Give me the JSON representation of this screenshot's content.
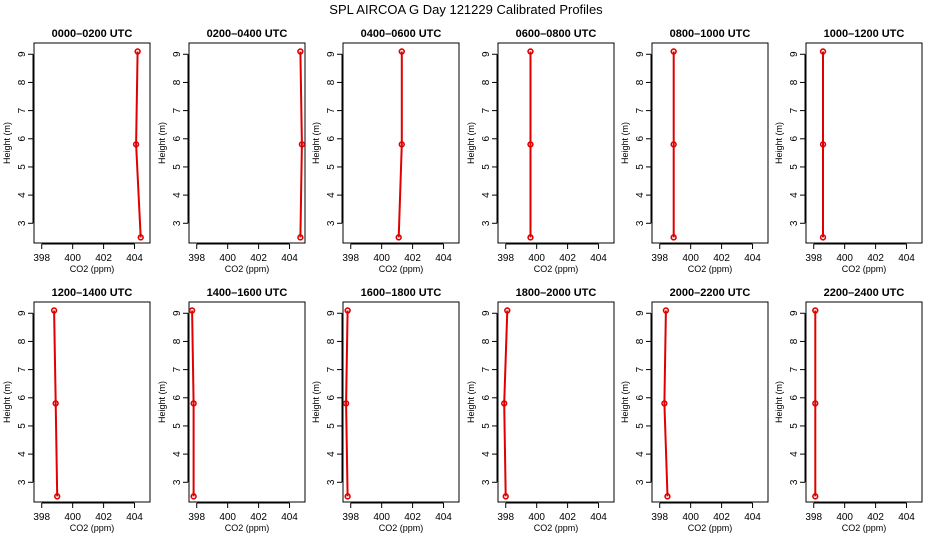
{
  "title": "SPL AIRCOA G  Day 121229  Calibrated Profiles",
  "colors": {
    "series": "#e00000",
    "axes": "#000000",
    "background": "#ffffff"
  },
  "chart_data": [
    {
      "type": "line",
      "title": "0000–0200 UTC",
      "xlabel": "CO2 (ppm)",
      "ylabel": "Height (m)",
      "xlim": [
        397.5,
        405
      ],
      "ylim": [
        2.3,
        9.4
      ],
      "xticks": [
        398,
        400,
        402,
        404
      ],
      "yticks": [
        3,
        4,
        5,
        6,
        7,
        8,
        9
      ],
      "grid": false,
      "x": [
        404.2,
        404.1,
        404.4
      ],
      "y": [
        9.1,
        5.8,
        2.5
      ]
    },
    {
      "type": "line",
      "title": "0200–0400 UTC",
      "xlabel": "CO2 (ppm)",
      "ylabel": "Height (m)",
      "xlim": [
        397.5,
        405
      ],
      "ylim": [
        2.3,
        9.4
      ],
      "xticks": [
        398,
        400,
        402,
        404
      ],
      "yticks": [
        3,
        4,
        5,
        6,
        7,
        8,
        9
      ],
      "grid": false,
      "x": [
        404.7,
        404.8,
        404.7
      ],
      "y": [
        9.1,
        5.8,
        2.5
      ]
    },
    {
      "type": "line",
      "title": "0400–0600 UTC",
      "xlabel": "CO2 (ppm)",
      "ylabel": "Height (m)",
      "xlim": [
        397.5,
        405
      ],
      "ylim": [
        2.3,
        9.4
      ],
      "xticks": [
        398,
        400,
        402,
        404
      ],
      "yticks": [
        3,
        4,
        5,
        6,
        7,
        8,
        9
      ],
      "grid": false,
      "x": [
        401.3,
        401.3,
        401.1
      ],
      "y": [
        9.1,
        5.8,
        2.5
      ]
    },
    {
      "type": "line",
      "title": "0600–0800 UTC",
      "xlabel": "CO2 (ppm)",
      "ylabel": "Height (m)",
      "xlim": [
        397.5,
        405
      ],
      "ylim": [
        2.3,
        9.4
      ],
      "xticks": [
        398,
        400,
        402,
        404
      ],
      "yticks": [
        3,
        4,
        5,
        6,
        7,
        8,
        9
      ],
      "grid": false,
      "x": [
        399.6,
        399.6,
        399.6
      ],
      "y": [
        9.1,
        5.8,
        2.5
      ]
    },
    {
      "type": "line",
      "title": "0800–1000 UTC",
      "xlabel": "CO2 (ppm)",
      "ylabel": "Height (m)",
      "xlim": [
        397.5,
        405
      ],
      "ylim": [
        2.3,
        9.4
      ],
      "xticks": [
        398,
        400,
        402,
        404
      ],
      "yticks": [
        3,
        4,
        5,
        6,
        7,
        8,
        9
      ],
      "grid": false,
      "x": [
        398.9,
        398.9,
        398.9
      ],
      "y": [
        9.1,
        5.8,
        2.5
      ]
    },
    {
      "type": "line",
      "title": "1000–1200 UTC",
      "xlabel": "CO2 (ppm)",
      "ylabel": "Height (m)",
      "xlim": [
        397.5,
        405
      ],
      "ylim": [
        2.3,
        9.4
      ],
      "xticks": [
        398,
        400,
        402,
        404
      ],
      "yticks": [
        3,
        4,
        5,
        6,
        7,
        8,
        9
      ],
      "grid": false,
      "x": [
        398.6,
        398.6,
        398.6
      ],
      "y": [
        9.1,
        5.8,
        2.5
      ]
    },
    {
      "type": "line",
      "title": "1200–1400 UTC",
      "xlabel": "CO2 (ppm)",
      "ylabel": "Height (m)",
      "xlim": [
        397.5,
        405
      ],
      "ylim": [
        2.3,
        9.4
      ],
      "xticks": [
        398,
        400,
        402,
        404
      ],
      "yticks": [
        3,
        4,
        5,
        6,
        7,
        8,
        9
      ],
      "grid": false,
      "x": [
        398.8,
        398.9,
        399.0
      ],
      "y": [
        9.1,
        5.8,
        2.5
      ]
    },
    {
      "type": "line",
      "title": "1400–1600 UTC",
      "xlabel": "CO2 (ppm)",
      "ylabel": "Height (m)",
      "xlim": [
        397.5,
        405
      ],
      "ylim": [
        2.3,
        9.4
      ],
      "xticks": [
        398,
        400,
        402,
        404
      ],
      "yticks": [
        3,
        4,
        5,
        6,
        7,
        8,
        9
      ],
      "grid": false,
      "x": [
        397.7,
        397.8,
        397.8
      ],
      "y": [
        9.1,
        5.8,
        2.5
      ]
    },
    {
      "type": "line",
      "title": "1600–1800 UTC",
      "xlabel": "CO2 (ppm)",
      "ylabel": "Height (m)",
      "xlim": [
        397.5,
        405
      ],
      "ylim": [
        2.3,
        9.4
      ],
      "xticks": [
        398,
        400,
        402,
        404
      ],
      "yticks": [
        3,
        4,
        5,
        6,
        7,
        8,
        9
      ],
      "grid": false,
      "x": [
        397.8,
        397.7,
        397.8
      ],
      "y": [
        9.1,
        5.8,
        2.5
      ]
    },
    {
      "type": "line",
      "title": "1800–2000 UTC",
      "xlabel": "CO2 (ppm)",
      "ylabel": "Height (m)",
      "xlim": [
        397.5,
        405
      ],
      "ylim": [
        2.3,
        9.4
      ],
      "xticks": [
        398,
        400,
        402,
        404
      ],
      "yticks": [
        3,
        4,
        5,
        6,
        7,
        8,
        9
      ],
      "grid": false,
      "x": [
        398.1,
        397.9,
        398.0
      ],
      "y": [
        9.1,
        5.8,
        2.5
      ]
    },
    {
      "type": "line",
      "title": "2000–2200 UTC",
      "xlabel": "CO2 (ppm)",
      "ylabel": "Height (m)",
      "xlim": [
        397.5,
        405
      ],
      "ylim": [
        2.3,
        9.4
      ],
      "xticks": [
        398,
        400,
        402,
        404
      ],
      "yticks": [
        3,
        4,
        5,
        6,
        7,
        8,
        9
      ],
      "grid": false,
      "x": [
        398.4,
        398.3,
        398.5
      ],
      "y": [
        9.1,
        5.8,
        2.5
      ]
    },
    {
      "type": "line",
      "title": "2200–2400 UTC",
      "xlabel": "CO2 (ppm)",
      "ylabel": "Height (m)",
      "xlim": [
        397.5,
        405
      ],
      "ylim": [
        2.3,
        9.4
      ],
      "xticks": [
        398,
        400,
        402,
        404
      ],
      "yticks": [
        3,
        4,
        5,
        6,
        7,
        8,
        9
      ],
      "grid": false,
      "x": [
        398.1,
        398.1,
        398.1
      ],
      "y": [
        9.1,
        5.8,
        2.5
      ]
    }
  ]
}
